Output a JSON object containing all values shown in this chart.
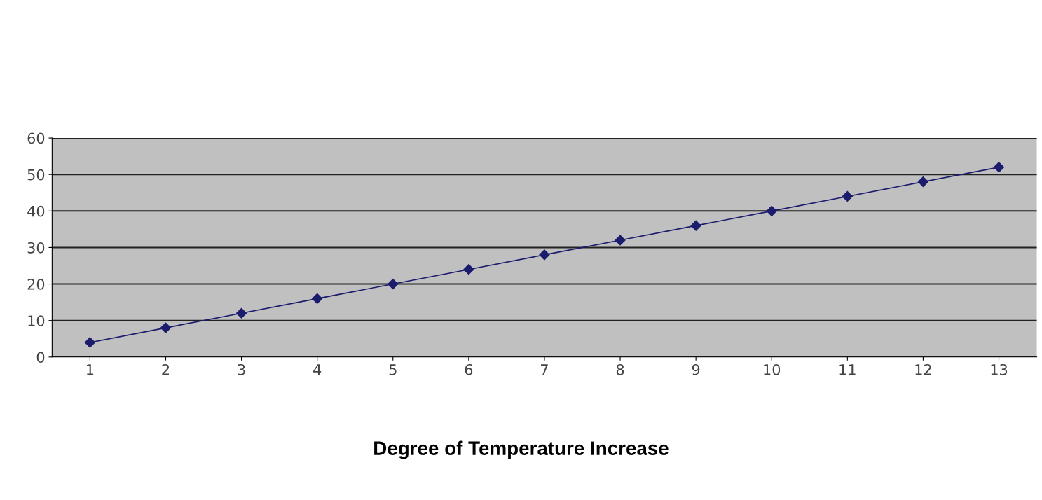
{
  "chart_data": {
    "type": "line",
    "xlabel": "Degree of Temperature Increase",
    "categories": [
      "1",
      "2",
      "3",
      "4",
      "5",
      "6",
      "7",
      "8",
      "9",
      "10",
      "11",
      "12",
      "13"
    ],
    "series": [
      {
        "color": "#1c1c6e",
        "values": [
          4,
          8,
          12,
          16,
          20,
          24,
          28,
          32,
          36,
          40,
          44,
          48,
          52
        ]
      }
    ],
    "ylim": [
      0,
      60
    ],
    "yticks": [
      0,
      10,
      20,
      30,
      40,
      50,
      60
    ],
    "grid": "y",
    "marker": "diamond",
    "line_style": "solid"
  }
}
